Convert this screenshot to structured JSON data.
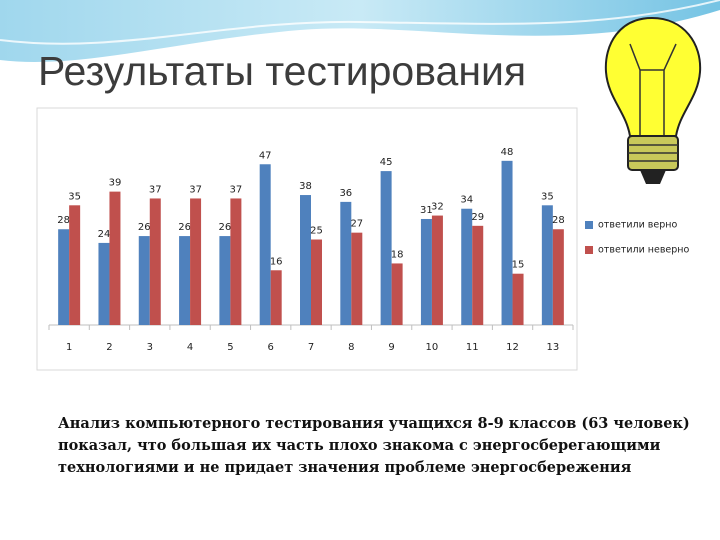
{
  "slide": {
    "title": "Результаты тестирования",
    "text": "Анализ компьютерного тестирования учащихся 8-9 классов (63 человек) показал, что большая их часть плохо знакома с энергосберегающими технологиями и не придает значения проблеме энергосбережения"
  },
  "chart_data": {
    "type": "bar",
    "categories": [
      "1",
      "2",
      "3",
      "4",
      "5",
      "6",
      "7",
      "8",
      "9",
      "10",
      "11",
      "12",
      "13"
    ],
    "series": [
      {
        "name": "ответили верно",
        "color": "#4f81bd",
        "values": [
          28,
          24,
          26,
          26,
          26,
          47,
          38,
          36,
          45,
          31,
          34,
          48,
          35
        ]
      },
      {
        "name": "ответили неверно",
        "color": "#c0504d",
        "values": [
          35,
          39,
          37,
          37,
          37,
          16,
          25,
          27,
          18,
          32,
          29,
          15,
          28
        ]
      }
    ],
    "ylim": [
      0,
      50
    ],
    "legend": "right"
  }
}
